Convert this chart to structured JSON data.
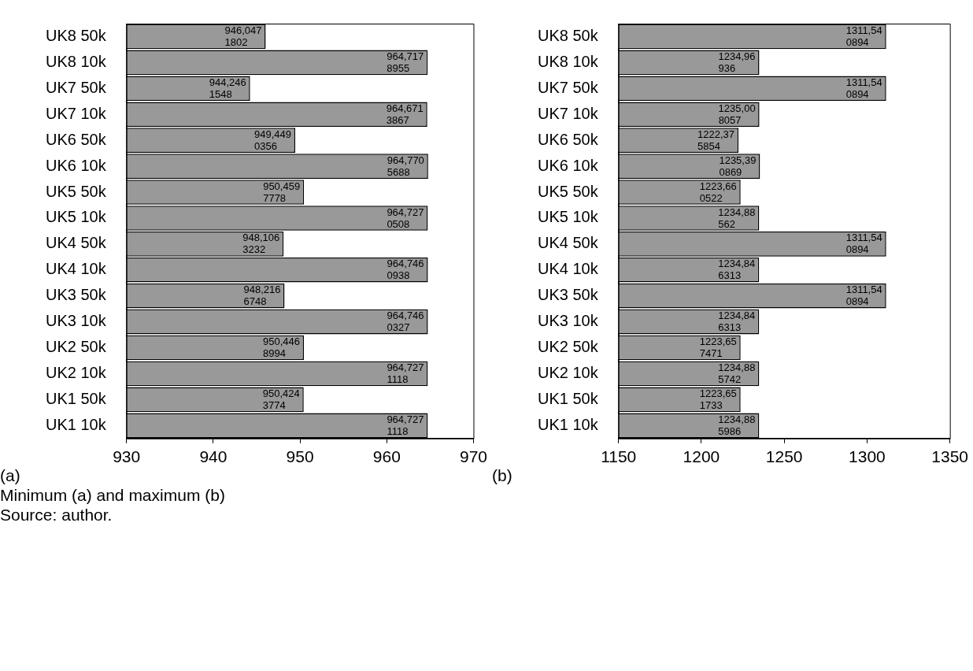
{
  "chart_data": [
    {
      "type": "bar",
      "orientation": "horizontal",
      "categories": [
        "UK8 50k",
        "UK8 10k",
        "UK7 50k",
        "UK7 10k",
        "UK6 50k",
        "UK6 10k",
        "UK5 50k",
        "UK5 10k",
        "UK4 50k",
        "UK4 10k",
        "UK3 50k",
        "UK3 10k",
        "UK2 50k",
        "UK2 10k",
        "UK1 50k",
        "UK1 10k"
      ],
      "values": [
        946.0471802,
        964.7178955,
        944.2461548,
        964.6713867,
        949.4490356,
        964.7705688,
        950.4597778,
        964.7270508,
        948.1063232,
        964.7460938,
        948.2166748,
        964.7460327,
        950.4468994,
        964.7271118,
        950.4243774,
        964.7271118
      ],
      "value_labels": [
        "946,0471802",
        "964,7178955",
        "944,2461548",
        "964,6713867",
        "949,4490356",
        "964,7705688",
        "950,4597778",
        "964,7270508",
        "948,1063232",
        "964,7460938",
        "948,2166748",
        "964,7460327",
        "950,4468994",
        "964,7271118",
        "950,4243774",
        "964,7271118"
      ],
      "color": "#999999",
      "xlim": [
        930,
        970
      ],
      "xticks": [
        930,
        940,
        950,
        960,
        970
      ],
      "grid": false,
      "legend": false,
      "annotations": [
        "(a)",
        "Minimum (a) and maximum (b)",
        "Source: author."
      ]
    },
    {
      "type": "bar",
      "orientation": "horizontal",
      "categories": [
        "UK8 50k",
        "UK8 10k",
        "UK7 50k",
        "UK7 10k",
        "UK6 50k",
        "UK6 10k",
        "UK5 50k",
        "UK5 10k",
        "UK4 50k",
        "UK4 10k",
        "UK3 50k",
        "UK3 10k",
        "UK2 50k",
        "UK2 10k",
        "UK1 50k",
        "UK1 10k"
      ],
      "values": [
        1311.540894,
        1234.96936,
        1311.540894,
        1235.008057,
        1222.375854,
        1235.390869,
        1223.660522,
        1234.88562,
        1311.540894,
        1234.846313,
        1311.540894,
        1234.846313,
        1223.657471,
        1234.885742,
        1223.651733,
        1234.885986
      ],
      "value_labels": [
        "1311,540894",
        "1234,96936",
        "1311,540894",
        "1235,008057",
        "1222,375854",
        "1235,390869",
        "1223,660522",
        "1234,88562",
        "1311,540894",
        "1234,846313",
        "1311,540894",
        "1234,846313",
        "1223,657471",
        "1234,885742",
        "1223,651733",
        "1234,885986"
      ],
      "color": "#999999",
      "xlim": [
        1150,
        1350
      ],
      "xticks": [
        1150,
        1200,
        1250,
        1300,
        1350
      ],
      "grid": false,
      "legend": false,
      "annotations": [
        "(b)"
      ]
    }
  ]
}
